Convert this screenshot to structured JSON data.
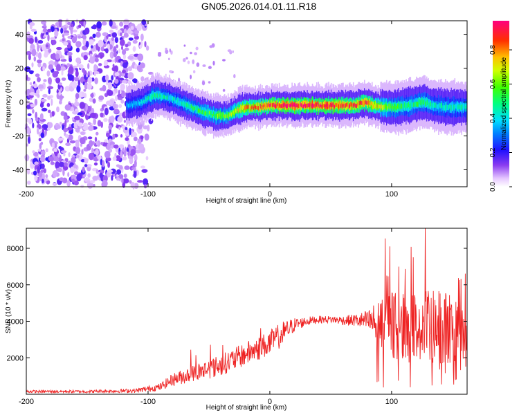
{
  "figure_title": "GN05.2026.014.01.11.R18",
  "chart_data": [
    {
      "type": "heatmap",
      "title": "GN05.2026.014.01.11.R18",
      "xlabel": "Height of straight line (km)",
      "ylabel": "Frequency (Hz)",
      "xlim": [
        -200,
        162
      ],
      "ylim": [
        -50,
        48
      ],
      "xticks": [
        -200,
        -100,
        0,
        100
      ],
      "yticks": [
        -40,
        -20,
        0,
        20,
        40
      ],
      "colorbar": {
        "label": "Normalized spectral amplitude",
        "range": [
          0,
          0.97
        ],
        "ticks": [
          0.0,
          0.2,
          0.4,
          0.6,
          0.8
        ],
        "tick_labels": [
          "0.0",
          "0.2",
          "0.4",
          "0.6",
          "0.8"
        ],
        "colormap": "rainbow"
      },
      "ridge": {
        "description_points_x": [
          -115,
          -105,
          -95,
          -85,
          -75,
          -65,
          -55,
          -45,
          -35,
          -28,
          -20,
          -10,
          0,
          10,
          20,
          30,
          40,
          50,
          60,
          70,
          78,
          85,
          95,
          105,
          115,
          125,
          135,
          145,
          155,
          162
        ],
        "frequency": [
          -2,
          0,
          4,
          3,
          0,
          -3,
          -6,
          -8,
          -8,
          -5,
          -3,
          -3,
          -2,
          -2,
          -2,
          -2,
          -2,
          -2,
          -2,
          -2,
          0,
          -2,
          -3,
          -3,
          -2,
          0,
          -2,
          -3,
          -3,
          -3
        ],
        "peak_amplitude": [
          0.35,
          0.4,
          0.5,
          0.45,
          0.45,
          0.5,
          0.55,
          0.6,
          0.6,
          0.7,
          0.8,
          0.85,
          0.9,
          0.95,
          0.95,
          0.95,
          0.95,
          0.95,
          0.9,
          0.85,
          0.9,
          0.8,
          0.6,
          0.55,
          0.5,
          0.55,
          0.45,
          0.45,
          0.45,
          0.45
        ]
      },
      "noise_region": {
        "x_from": -200,
        "x_to": -95,
        "amplitude": 0.25
      }
    },
    {
      "type": "line",
      "xlabel": "Height of straight line (km)",
      "ylabel": "SNR (10 * v/v)",
      "xlim": [
        -200,
        162
      ],
      "ylim": [
        0,
        9100
      ],
      "xticks": [
        -200,
        -100,
        0,
        100
      ],
      "yticks": [
        2000,
        4000,
        6000,
        8000
      ],
      "series": [
        {
          "name": "SNR",
          "color": "#ee2222",
          "anchor_x": [
            -200,
            -150,
            -110,
            -90,
            -80,
            -60,
            -40,
            -20,
            0,
            10,
            20,
            30,
            40,
            50,
            60,
            70,
            80,
            90,
            100,
            110,
            120,
            130,
            140,
            150,
            162
          ],
          "mean": [
            150,
            150,
            200,
            400,
            800,
            1200,
            1600,
            2200,
            2800,
            3300,
            3800,
            4000,
            4100,
            4100,
            4050,
            4050,
            4000,
            3900,
            3800,
            3700,
            3600,
            3500,
            3400,
            3300,
            3200
          ],
          "spread": [
            80,
            80,
            120,
            200,
            350,
            500,
            600,
            650,
            700,
            700,
            400,
            250,
            200,
            200,
            250,
            350,
            600,
            1400,
            1800,
            1900,
            2000,
            2200,
            2300,
            2200,
            1800
          ]
        }
      ]
    }
  ]
}
